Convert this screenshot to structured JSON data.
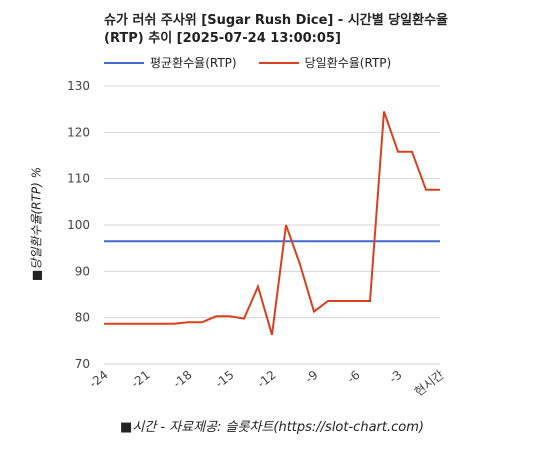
{
  "chart_data": {
    "type": "line",
    "title": "슈가 러쉬 주사위 [Sugar Rush Dice] - 시간별 당일환수율(RTP) 추이 [2025-07-24 13:00:05]",
    "xlabel": "■시간 - 자료제공: 슬롯차트(https://slot-chart.com)",
    "ylabel": "■당일환수율(RTP) %",
    "x_ticks": [
      "-24",
      "-21",
      "-18",
      "-15",
      "-12",
      "-9",
      "-6",
      "-3",
      "현시간"
    ],
    "x_tick_positions": [
      -24,
      -21,
      -18,
      -15,
      -12,
      -9,
      -6,
      -3,
      0
    ],
    "ylim": [
      70,
      130
    ],
    "y_ticks": [
      70,
      80,
      90,
      100,
      110,
      120,
      130
    ],
    "grid": true,
    "legend_position": "top-left",
    "series": [
      {
        "name": "평균환수율(RTP)",
        "color": "#4169d1",
        "x": [
          -24,
          0
        ],
        "values": [
          96.5,
          96.5
        ]
      },
      {
        "name": "당일환수율(RTP)",
        "color": "#d9401e",
        "x": [
          -24,
          -23,
          -22,
          -21,
          -20,
          -19,
          -18,
          -17,
          -16,
          -15,
          -14,
          -13,
          -12,
          -11,
          -10,
          -9,
          -8,
          -7,
          -6,
          -5,
          -4,
          -3,
          -2,
          -1,
          0
        ],
        "values": [
          78.7,
          78.7,
          78.7,
          78.7,
          78.7,
          78.7,
          79.0,
          79.0,
          80.3,
          80.3,
          79.8,
          86.7,
          76.3,
          100.0,
          91.5,
          81.3,
          83.6,
          83.6,
          83.6,
          83.6,
          124.5,
          115.8,
          115.8,
          107.6,
          107.6
        ]
      }
    ]
  }
}
